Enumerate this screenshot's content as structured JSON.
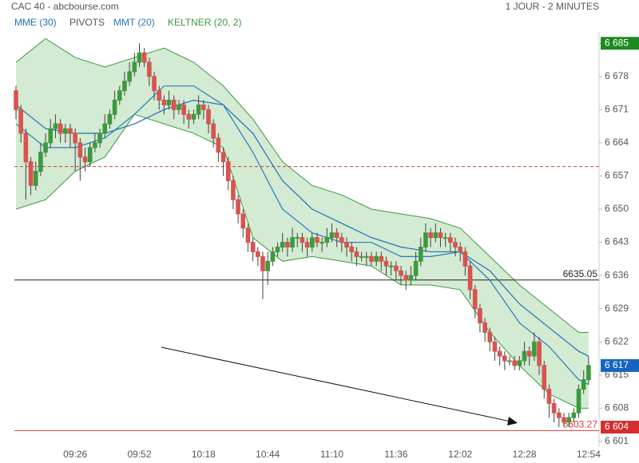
{
  "chart_data": {
    "type": "candlestick",
    "title": "CAC 40 - abcbourse.com",
    "subtitle": "1 JOUR - 2 MINUTES",
    "up_color": "#3c9a3c",
    "down_color": "#d9534f",
    "ylim": [
      6599.8,
      6687.4
    ],
    "yticks": [
      {
        "value": 6601,
        "label": "6 601"
      },
      {
        "value": 6608,
        "label": "6 608"
      },
      {
        "value": 6615,
        "label": "6 615"
      },
      {
        "value": 6622,
        "label": "6 622"
      },
      {
        "value": 6629,
        "label": "6 629"
      },
      {
        "value": 6636,
        "label": "6 636"
      },
      {
        "value": 6643,
        "label": "6 643"
      },
      {
        "value": 6650,
        "label": "6 650"
      },
      {
        "value": 6657,
        "label": "6 657"
      },
      {
        "value": 6664,
        "label": "6 664"
      },
      {
        "value": 6671,
        "label": "6 671"
      },
      {
        "value": 6678,
        "label": "6 678"
      },
      {
        "value": 6685,
        "label": "6 685"
      }
    ],
    "categories": [
      null,
      null,
      null,
      null,
      null,
      null,
      null,
      null,
      null,
      null,
      null,
      null,
      "09:26",
      null,
      null,
      null,
      null,
      null,
      null,
      null,
      null,
      null,
      null,
      null,
      null,
      "09:52",
      null,
      null,
      null,
      null,
      null,
      null,
      null,
      null,
      null,
      null,
      null,
      null,
      "10:18",
      null,
      null,
      null,
      null,
      null,
      null,
      null,
      null,
      null,
      null,
      null,
      null,
      "10:44",
      null,
      null,
      null,
      null,
      null,
      null,
      null,
      null,
      null,
      null,
      null,
      null,
      "11:10",
      null,
      null,
      null,
      null,
      null,
      null,
      null,
      null,
      null,
      null,
      null,
      null,
      "11:36",
      null,
      null,
      null,
      null,
      null,
      null,
      null,
      null,
      null,
      null,
      null,
      null,
      "12:02",
      null,
      null,
      null,
      null,
      null,
      null,
      null,
      null,
      null,
      null,
      null,
      null,
      "12:28",
      null,
      null,
      null,
      null,
      null,
      null,
      null,
      null,
      null,
      null,
      null,
      null,
      "12:54"
    ],
    "candles": [
      [
        6675,
        6676,
        6669,
        6671
      ],
      [
        6671,
        6672,
        6664,
        6666
      ],
      [
        6666,
        6667,
        6652,
        6660
      ],
      [
        6660,
        6661,
        6653,
        6655
      ],
      [
        6655,
        6660,
        6654,
        6658
      ],
      [
        6658,
        6664,
        6657,
        6662
      ],
      [
        6662,
        6666,
        6661,
        6664
      ],
      [
        6664,
        6669,
        6663,
        6667
      ],
      [
        6667,
        6670,
        6665,
        6668
      ],
      [
        6668,
        6669,
        6664,
        6666
      ],
      [
        6666,
        6668,
        6664,
        6667
      ],
      [
        6667,
        6668,
        6663,
        6666
      ],
      [
        6666,
        6667,
        6658,
        6664
      ],
      [
        6664,
        6665,
        6656,
        6661
      ],
      [
        6661,
        6663,
        6658,
        6660
      ],
      [
        6660,
        6664,
        6659,
        6663
      ],
      [
        6663,
        6666,
        6662,
        6664
      ],
      [
        6664,
        6667,
        6663,
        6666
      ],
      [
        6666,
        6670,
        6665,
        6668
      ],
      [
        6668,
        6671,
        6667,
        6670
      ],
      [
        6670,
        6675,
        6669,
        6673
      ],
      [
        6673,
        6676,
        6672,
        6675
      ],
      [
        6675,
        6679,
        6674,
        6677
      ],
      [
        6677,
        6681,
        6676,
        6679
      ],
      [
        6679,
        6683,
        6678,
        6681
      ],
      [
        6681,
        6685,
        6680,
        6683
      ],
      [
        6683,
        6684,
        6680,
        6681
      ],
      [
        6681,
        6682,
        6676,
        6678
      ],
      [
        6678,
        6679,
        6673,
        6675
      ],
      [
        6675,
        6676,
        6671,
        6673
      ],
      [
        6673,
        6674,
        6670,
        6672
      ],
      [
        6672,
        6675,
        6671,
        6673
      ],
      [
        6673,
        6674,
        6669,
        6671
      ],
      [
        6671,
        6673,
        6670,
        6672
      ],
      [
        6672,
        6673,
        6668,
        6670
      ],
      [
        6670,
        6671,
        6667,
        6669
      ],
      [
        6669,
        6671,
        6668,
        6670
      ],
      [
        6670,
        6674,
        6669,
        6672
      ],
      [
        6672,
        6673,
        6669,
        6671
      ],
      [
        6671,
        6672,
        6666,
        6668
      ],
      [
        6668,
        6669,
        6663,
        6665
      ],
      [
        6665,
        6666,
        6660,
        6662
      ],
      [
        6662,
        6663,
        6657,
        6660
      ],
      [
        6660,
        6661,
        6654,
        6656
      ],
      [
        6656,
        6657,
        6650,
        6652
      ],
      [
        6652,
        6653,
        6647,
        6649
      ],
      [
        6649,
        6650,
        6644,
        6646
      ],
      [
        6646,
        6647,
        6641,
        6643
      ],
      [
        6643,
        6644,
        6639,
        6641
      ],
      [
        6641,
        6642,
        6638,
        6640
      ],
      [
        6640,
        6641,
        6631,
        6637
      ],
      [
        6637,
        6641,
        6634,
        6639
      ],
      [
        6639,
        6642,
        6638,
        6641
      ],
      [
        6641,
        6643,
        6640,
        6642
      ],
      [
        6642,
        6645,
        6641,
        6643
      ],
      [
        6643,
        6644,
        6640,
        6642
      ],
      [
        6642,
        6646,
        6641,
        6644
      ],
      [
        6644,
        6645,
        6642,
        6644
      ],
      [
        6644,
        6645,
        6641,
        6643
      ],
      [
        6643,
        6644,
        6640,
        6642
      ],
      [
        6642,
        6645,
        6641,
        6644
      ],
      [
        6644,
        6645,
        6642,
        6643
      ],
      [
        6643,
        6644,
        6641,
        6643
      ],
      [
        6643,
        6646,
        6642,
        6644
      ],
      [
        6644,
        6647,
        6643,
        6645
      ],
      [
        6645,
        6646,
        6642,
        6644
      ],
      [
        6644,
        6645,
        6641,
        6643
      ],
      [
        6643,
        6644,
        6640,
        6642
      ],
      [
        6642,
        6643,
        6639,
        6641
      ],
      [
        6641,
        6642,
        6638,
        6640
      ],
      [
        6640,
        6641,
        6639,
        6640
      ],
      [
        6640,
        6641,
        6638,
        6640
      ],
      [
        6640,
        6641,
        6638,
        6639
      ],
      [
        6639,
        6641,
        6638,
        6640
      ],
      [
        6640,
        6641,
        6637,
        6639
      ],
      [
        6639,
        6640,
        6636,
        6638
      ],
      [
        6638,
        6639,
        6636,
        6638
      ],
      [
        6638,
        6639,
        6635,
        6637
      ],
      [
        6637,
        6638,
        6634,
        6636
      ],
      [
        6636,
        6637,
        6633,
        6635
      ],
      [
        6635,
        6638,
        6634,
        6636
      ],
      [
        6636,
        6641,
        6635,
        6639
      ],
      [
        6639,
        6644,
        6638,
        6642
      ],
      [
        6642,
        6647,
        6641,
        6645
      ],
      [
        6645,
        6646,
        6642,
        6644
      ],
      [
        6644,
        6647,
        6643,
        6645
      ],
      [
        6645,
        6646,
        6642,
        6644
      ],
      [
        6644,
        6645,
        6642,
        6644
      ],
      [
        6644,
        6645,
        6641,
        6643
      ],
      [
        6643,
        6644,
        6640,
        6642
      ],
      [
        6642,
        6643,
        6639,
        6641
      ],
      [
        6641,
        6642,
        6636,
        6638
      ],
      [
        6638,
        6639,
        6631,
        6633
      ],
      [
        6633,
        6634,
        6627,
        6629
      ],
      [
        6629,
        6630,
        6624,
        6626
      ],
      [
        6626,
        6627,
        6622,
        6624
      ],
      [
        6624,
        6625,
        6620,
        6622
      ],
      [
        6622,
        6623,
        6618,
        6620
      ],
      [
        6620,
        6621,
        6617,
        6619
      ],
      [
        6619,
        6620,
        6616,
        6618
      ],
      [
        6618,
        6619,
        6617,
        6618
      ],
      [
        6618,
        6619,
        6616,
        6617
      ],
      [
        6617,
        6619,
        6616,
        6618
      ],
      [
        6618,
        6622,
        6617,
        6620
      ],
      [
        6620,
        6621,
        6617,
        6619
      ],
      [
        6619,
        6624,
        6618,
        6622
      ],
      [
        6622,
        6623,
        6615,
        6617
      ],
      [
        6617,
        6618,
        6610,
        6612
      ],
      [
        6612,
        6613,
        6606,
        6609
      ],
      [
        6609,
        6610,
        6605,
        6607
      ],
      [
        6607,
        6608,
        6604,
        6606
      ],
      [
        6606,
        6607,
        6604,
        6605
      ],
      [
        6605,
        6607,
        6604,
        6606
      ],
      [
        6606,
        6608,
        6605,
        6607
      ],
      [
        6607,
        6613,
        6606,
        6612
      ],
      [
        6612,
        6616,
        6611,
        6614
      ],
      [
        6614,
        6619,
        6613,
        6617
      ]
    ],
    "keltner": {
      "name": "KELTNER (20, 2)",
      "color": "#3c9a3c",
      "fill": "rgba(80,170,80,0.25)",
      "x": [
        0,
        6,
        12,
        18,
        24,
        30,
        36,
        42,
        48,
        54,
        60,
        66,
        72,
        78,
        84,
        90,
        96,
        102,
        108,
        114,
        116
      ],
      "upper": [
        6681,
        6686,
        6682,
        6680,
        6682,
        6684,
        6681,
        6676,
        6669,
        6660,
        6655,
        6653,
        6650,
        6649,
        6648,
        6646,
        6640,
        6634,
        6629,
        6624,
        6624
      ],
      "lower": [
        6650,
        6652,
        6658,
        6661,
        6670,
        6668,
        6666,
        6663,
        6644,
        6639,
        6640,
        6639,
        6638,
        6634,
        6634,
        6633,
        6624,
        6617,
        6611,
        6608,
        6608
      ]
    },
    "series": [
      {
        "name": "MME (30)",
        "color": "#1f6fb5",
        "x": [
          0,
          6,
          12,
          18,
          24,
          30,
          36,
          42,
          48,
          54,
          60,
          66,
          72,
          78,
          84,
          90,
          96,
          102,
          108,
          114,
          116
        ],
        "values": [
          6672,
          6667,
          6666,
          6666,
          6668,
          6671,
          6673,
          6672,
          6666,
          6656,
          6650,
          6647,
          6644,
          6642,
          6641,
          6641,
          6637,
          6630,
          6625,
          6620,
          6619
        ]
      },
      {
        "name": "MMT (20)",
        "color": "#2a7ab8",
        "x": [
          0,
          6,
          12,
          18,
          24,
          30,
          36,
          42,
          48,
          54,
          60,
          66,
          72,
          78,
          84,
          90,
          96,
          102,
          108,
          114,
          116
        ],
        "values": [
          6668,
          6663,
          6663,
          6665,
          6670,
          6676,
          6676,
          6672,
          6662,
          6650,
          6645,
          6643,
          6643,
          6640,
          6640,
          6641,
          6635,
          6626,
          6621,
          6614,
          6613
        ]
      }
    ],
    "pivots": {
      "name": "PIVOTS",
      "color": "#555555"
    },
    "hlines": [
      {
        "value": 6659,
        "color": "#e53935",
        "dashed": true,
        "labeled": false
      },
      {
        "value": 6635.05,
        "color": "#222222",
        "dashed": false,
        "labeled": true
      },
      {
        "value": 6603.27,
        "color": "#e53935",
        "dashed": false,
        "labeled": true
      }
    ],
    "price_badges": [
      {
        "value": 6685,
        "label": "6 685",
        "color": "#1e8a1e"
      },
      {
        "value": 6617,
        "label": "6 617",
        "color": "#1565c0"
      },
      {
        "value": 6604,
        "label": "6 604",
        "color": "#d32f2f"
      }
    ]
  }
}
